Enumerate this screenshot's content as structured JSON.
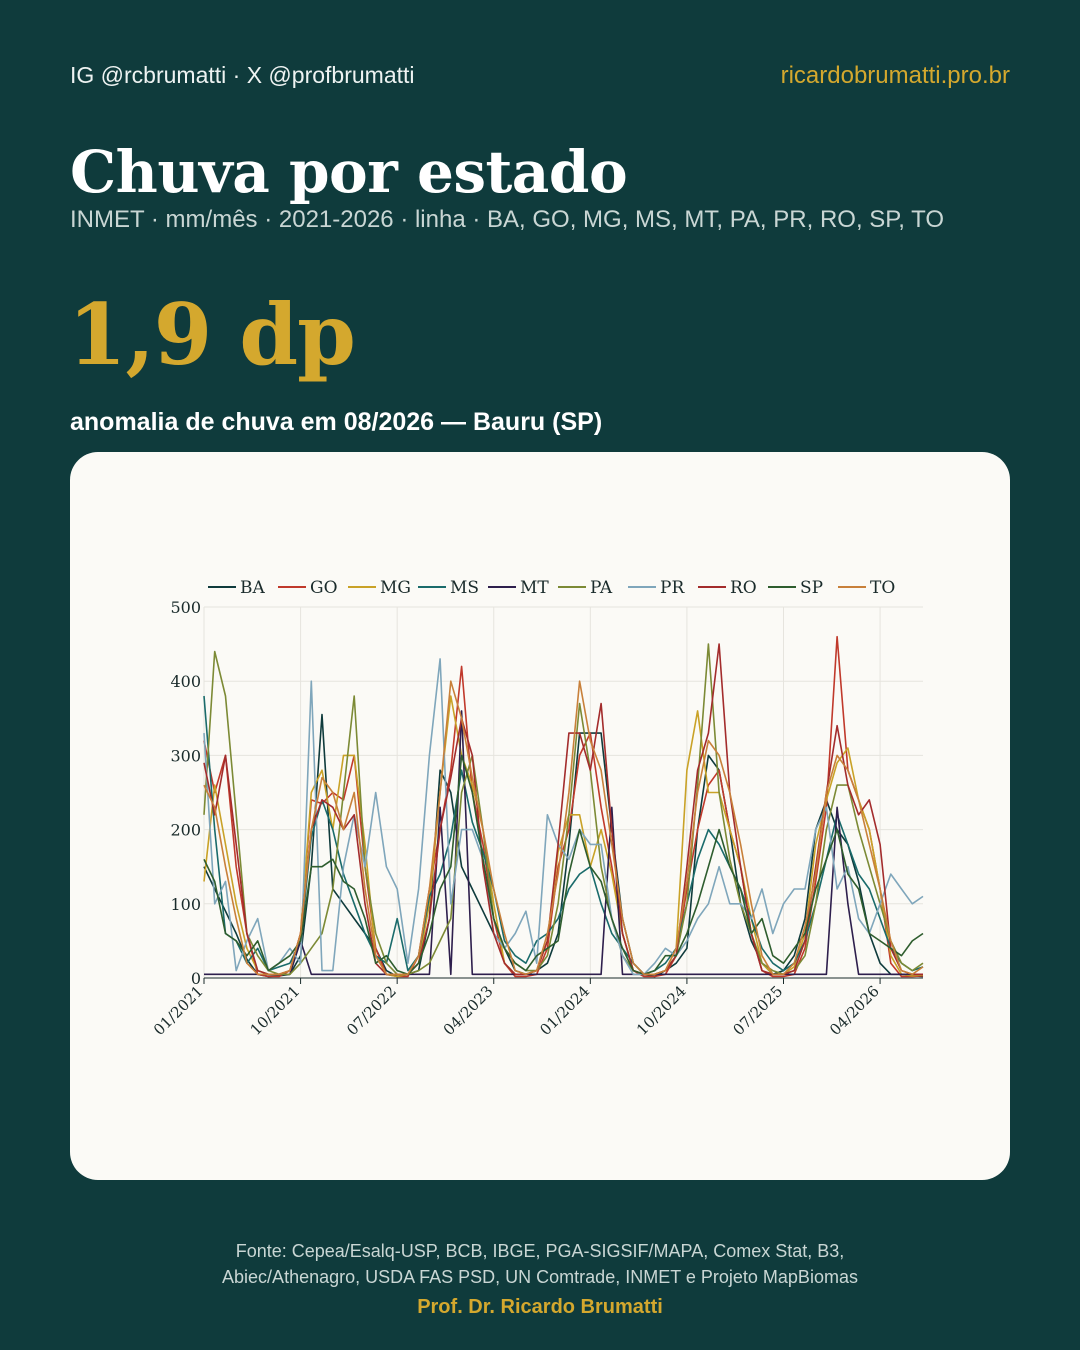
{
  "header": {
    "social": "IG @rcbrumatti · X @profbrumatti",
    "website": "ricardobrumatti.pro.br"
  },
  "title": "Chuva por estado",
  "subtitle": "INMET · mm/mês · 2021-2026 · linha · BA, GO, MG, MS, MT, PA, PR, RO, SP, TO",
  "highlight": {
    "value": "1,9 dp",
    "caption": "anomalia de chuva em 08/2026 — Bauru (SP)"
  },
  "footer": {
    "source_line1": "Fonte: Cepea/Esalq-USP, BCB, IBGE, PGA-SIGSIF/MAPA, Comex Stat, B3,",
    "source_line2": "Abiec/Athenagro, USDA FAS PSD, UN Comtrade, INMET e Projeto MapBiomas",
    "author": "Prof. Dr. Ricardo Brumatti"
  },
  "chart_data": {
    "type": "line",
    "title": "",
    "xlabel": "",
    "ylabel": "",
    "ylim": [
      0,
      500
    ],
    "yticks": [
      0,
      100,
      200,
      300,
      400,
      500
    ],
    "x_start": "01/2021",
    "x_end": "08/2026",
    "xticks": [
      "01/2021",
      "10/2021",
      "07/2022",
      "04/2023",
      "01/2024",
      "10/2024",
      "07/2025",
      "04/2026"
    ],
    "grid": true,
    "legend_position": "top",
    "series": [
      {
        "name": "BA",
        "color": "#0f3b3c",
        "values": [
          150,
          120,
          90,
          60,
          25,
          5,
          2,
          3,
          5,
          30,
          150,
          355,
          120,
          100,
          80,
          60,
          40,
          10,
          2,
          5,
          10,
          80,
          280,
          250,
          150,
          120,
          90,
          60,
          40,
          10,
          5,
          10,
          20,
          60,
          180,
          330,
          330,
          330,
          200,
          80,
          20,
          5,
          2,
          10,
          20,
          40,
          200,
          300,
          280,
          200,
          100,
          50,
          20,
          5,
          10,
          30,
          80,
          200,
          240,
          200,
          180,
          130,
          60,
          20,
          5,
          5,
          3,
          2
        ]
      },
      {
        "name": "GO",
        "color": "#c0392b",
        "values": [
          320,
          250,
          300,
          150,
          60,
          5,
          2,
          2,
          10,
          60,
          240,
          235,
          250,
          240,
          300,
          150,
          40,
          5,
          2,
          2,
          30,
          120,
          200,
          280,
          420,
          250,
          180,
          80,
          20,
          2,
          2,
          5,
          40,
          150,
          200,
          300,
          330,
          230,
          150,
          60,
          10,
          2,
          2,
          5,
          30,
          120,
          200,
          260,
          280,
          200,
          150,
          60,
          10,
          2,
          2,
          5,
          40,
          130,
          230,
          460,
          280,
          240,
          200,
          120,
          20,
          2,
          2,
          3
        ]
      },
      {
        "name": "MG",
        "color": "#c9a227",
        "values": [
          130,
          260,
          180,
          100,
          40,
          10,
          5,
          5,
          10,
          60,
          250,
          280,
          200,
          300,
          300,
          180,
          30,
          5,
          2,
          5,
          20,
          100,
          250,
          380,
          300,
          260,
          200,
          100,
          20,
          5,
          5,
          10,
          50,
          170,
          220,
          220,
          150,
          200,
          140,
          60,
          10,
          5,
          5,
          10,
          40,
          280,
          360,
          250,
          250,
          200,
          150,
          80,
          20,
          5,
          5,
          15,
          60,
          180,
          240,
          290,
          310,
          240,
          200,
          120,
          30,
          5,
          3,
          4
        ]
      },
      {
        "name": "MS",
        "color": "#1a6b6b",
        "values": [
          380,
          200,
          60,
          50,
          20,
          40,
          10,
          15,
          20,
          50,
          190,
          240,
          200,
          140,
          100,
          60,
          30,
          20,
          80,
          10,
          30,
          110,
          140,
          190,
          280,
          210,
          170,
          120,
          50,
          30,
          20,
          50,
          60,
          80,
          120,
          140,
          150,
          100,
          60,
          40,
          20,
          5,
          10,
          20,
          40,
          100,
          160,
          200,
          180,
          150,
          120,
          80,
          40,
          20,
          10,
          20,
          50,
          100,
          160,
          220,
          180,
          140,
          120,
          80,
          40,
          20,
          10,
          15
        ]
      },
      {
        "name": "MT",
        "color": "#2e1f4d",
        "values": [
          5,
          5,
          5,
          5,
          5,
          5,
          5,
          5,
          5,
          50,
          5,
          5,
          5,
          5,
          5,
          5,
          5,
          5,
          5,
          5,
          5,
          5,
          230,
          5,
          360,
          5,
          5,
          5,
          5,
          5,
          5,
          5,
          5,
          5,
          5,
          5,
          5,
          5,
          230,
          5,
          5,
          5,
          5,
          5,
          5,
          5,
          5,
          5,
          5,
          5,
          5,
          5,
          5,
          5,
          5,
          5,
          5,
          5,
          5,
          230,
          100,
          5,
          5,
          5,
          5,
          5,
          5,
          5
        ]
      },
      {
        "name": "PA",
        "color": "#7c8a35",
        "values": [
          220,
          440,
          380,
          220,
          60,
          30,
          10,
          5,
          5,
          20,
          40,
          60,
          120,
          250,
          380,
          150,
          60,
          20,
          5,
          5,
          10,
          20,
          50,
          80,
          250,
          300,
          200,
          80,
          40,
          20,
          10,
          10,
          30,
          100,
          220,
          370,
          280,
          150,
          80,
          30,
          10,
          5,
          5,
          10,
          30,
          100,
          260,
          450,
          250,
          160,
          100,
          60,
          20,
          10,
          5,
          10,
          30,
          100,
          200,
          260,
          260,
          200,
          150,
          100,
          50,
          20,
          10,
          20
        ]
      },
      {
        "name": "PR",
        "color": "#7fa6bb",
        "values": [
          330,
          100,
          130,
          10,
          50,
          80,
          10,
          20,
          40,
          20,
          400,
          10,
          10,
          150,
          220,
          150,
          250,
          150,
          120,
          20,
          120,
          300,
          430,
          100,
          200,
          200,
          160,
          60,
          40,
          60,
          90,
          20,
          220,
          180,
          160,
          200,
          180,
          180,
          80,
          30,
          5,
          5,
          20,
          40,
          30,
          50,
          80,
          100,
          150,
          100,
          100,
          80,
          120,
          60,
          100,
          120,
          120,
          200,
          230,
          120,
          150,
          80,
          60,
          100,
          140,
          120,
          100,
          110
        ]
      },
      {
        "name": "RO",
        "color": "#a32c2c",
        "values": [
          290,
          220,
          300,
          180,
          60,
          10,
          5,
          5,
          10,
          60,
          200,
          240,
          230,
          200,
          220,
          100,
          20,
          5,
          5,
          5,
          20,
          80,
          200,
          270,
          350,
          300,
          150,
          60,
          20,
          5,
          5,
          10,
          50,
          180,
          330,
          330,
          280,
          370,
          200,
          60,
          10,
          5,
          5,
          10,
          30,
          150,
          280,
          330,
          450,
          250,
          150,
          60,
          10,
          5,
          5,
          10,
          50,
          150,
          250,
          340,
          260,
          220,
          240,
          180,
          40,
          10,
          5,
          5
        ]
      },
      {
        "name": "SP",
        "color": "#2e5d2e",
        "values": [
          160,
          130,
          60,
          50,
          30,
          50,
          10,
          20,
          30,
          50,
          150,
          150,
          160,
          130,
          120,
          80,
          20,
          30,
          10,
          5,
          20,
          60,
          120,
          150,
          300,
          250,
          160,
          80,
          40,
          20,
          10,
          30,
          40,
          50,
          140,
          200,
          150,
          130,
          80,
          40,
          10,
          5,
          10,
          30,
          30,
          60,
          100,
          150,
          200,
          150,
          120,
          60,
          80,
          30,
          20,
          40,
          60,
          120,
          160,
          200,
          140,
          120,
          60,
          50,
          40,
          30,
          50,
          60
        ]
      },
      {
        "name": "TO",
        "color": "#c8803a",
        "values": [
          260,
          230,
          150,
          80,
          20,
          5,
          5,
          5,
          10,
          60,
          200,
          270,
          250,
          200,
          250,
          120,
          30,
          5,
          5,
          5,
          30,
          120,
          250,
          400,
          350,
          270,
          200,
          120,
          60,
          10,
          5,
          10,
          60,
          140,
          250,
          400,
          320,
          280,
          180,
          80,
          20,
          5,
          5,
          10,
          40,
          130,
          250,
          320,
          300,
          250,
          180,
          100,
          30,
          5,
          5,
          20,
          70,
          140,
          250,
          300,
          280,
          240,
          180,
          120,
          50,
          10,
          5,
          15
        ]
      }
    ]
  }
}
